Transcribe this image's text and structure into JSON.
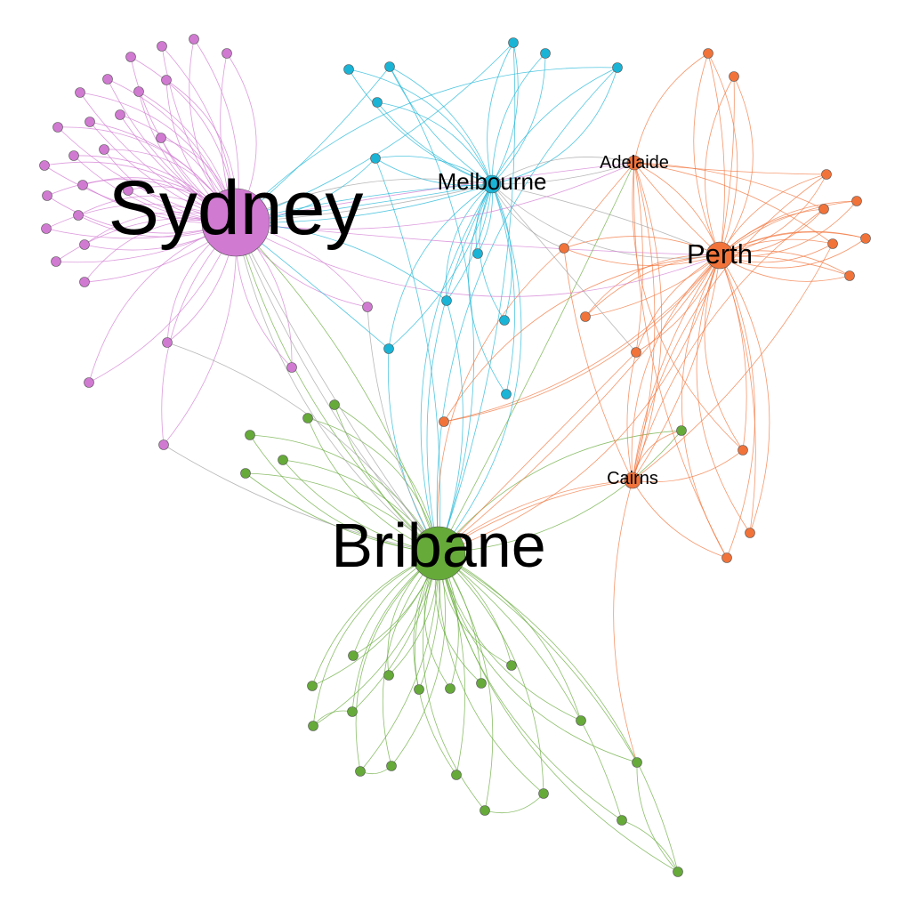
{
  "colors": {
    "sydney": "#d17ad2",
    "melbourne": "#1ab4d6",
    "perth": "#f2733a",
    "brisbane": "#66aa3a",
    "grey": "#a0a0a0"
  },
  "hub_labels": {
    "sydney": "Sydney",
    "melbourne": "Melbourne",
    "adelaide": "Adelaide",
    "perth": "Perth",
    "cairns": "Cairns",
    "brisbane": "Bribane"
  }
}
